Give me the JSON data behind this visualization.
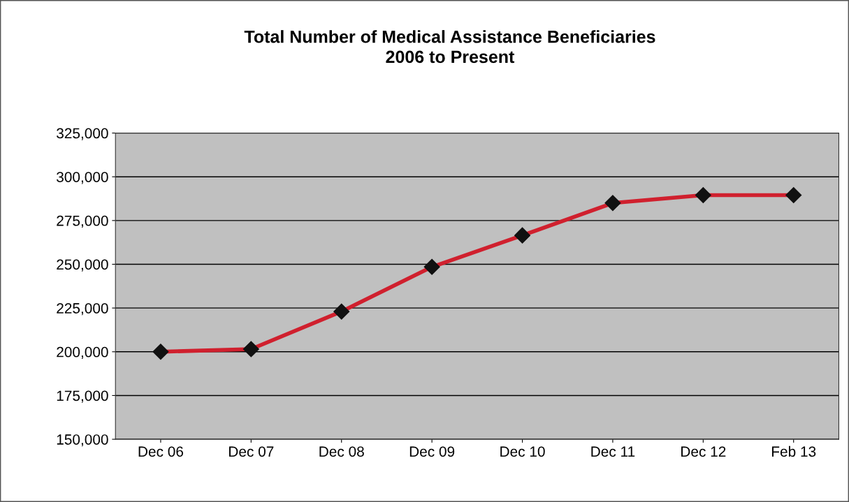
{
  "chart_data": {
    "type": "line",
    "title": "Total Number of Medical Assistance Beneficiaries\n2006 to Present",
    "categories": [
      "Dec 06",
      "Dec 07",
      "Dec 08",
      "Dec 09",
      "Dec 10",
      "Dec 11",
      "Dec 12",
      "Feb 13"
    ],
    "series": [
      {
        "color": "#d0202e",
        "values": [
          200000,
          201500,
          223000,
          248500,
          266500,
          285000,
          289500,
          289500
        ]
      }
    ],
    "marker": "diamond",
    "line_style": "solid",
    "grid": "y",
    "legend": false,
    "ylim": [
      150000,
      325000
    ],
    "yticks": [
      {
        "value": 150000,
        "label": "150,000"
      },
      {
        "value": 175000,
        "label": "175,000"
      },
      {
        "value": 200000,
        "label": "200,000"
      },
      {
        "value": 225000,
        "label": "225,000"
      },
      {
        "value": 250000,
        "label": "250,000"
      },
      {
        "value": 275000,
        "label": "275,000"
      },
      {
        "value": 300000,
        "label": "300,000"
      },
      {
        "value": 325000,
        "label": "325,000"
      }
    ]
  }
}
